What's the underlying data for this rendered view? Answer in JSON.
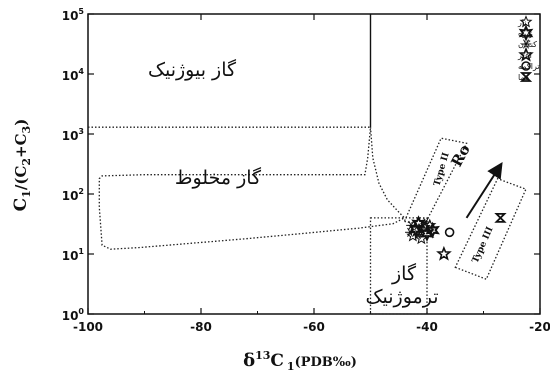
{
  "chart_data": {
    "type": "scatter",
    "x_axis": {
      "label_main": "δ",
      "label_sup": "13",
      "label_rest": "C",
      "label_sub": "1",
      "label_unit": "(PDB‰)",
      "range": [
        -100,
        -20
      ],
      "ticks": [
        "-100",
        "-80",
        "-60",
        "-40",
        "-20"
      ],
      "tick_values": [
        -100,
        -80,
        -60,
        -40,
        -20
      ]
    },
    "y_axis": {
      "scale": "log",
      "label_main": "C",
      "label_sub1": "1",
      "label_mid": "/(C",
      "label_sub2": "2",
      "label_plus": "+C",
      "label_sub3": "3",
      "label_close": ")",
      "range": [
        1,
        100000
      ],
      "ticks": [
        {
          "value": 1,
          "base": "10",
          "exp": "0"
        },
        {
          "value": 10,
          "base": "10",
          "exp": "1"
        },
        {
          "value": 100,
          "base": "10",
          "exp": "2"
        },
        {
          "value": 1000,
          "base": "10",
          "exp": "3"
        },
        {
          "value": 10000,
          "base": "10",
          "exp": "4"
        },
        {
          "value": 100000,
          "base": "10",
          "exp": "5"
        }
      ]
    },
    "regions": [
      {
        "name": "biogenic",
        "label": "گاز بیوژنیک",
        "x": -82,
        "y": 5000
      },
      {
        "name": "mixed",
        "label": "گاز مخلوط",
        "x": -80,
        "y": 200
      },
      {
        "name": "thermogenic",
        "label_line1": "گاز",
        "label_line2": "ترموژنیک",
        "x": -38,
        "y": 3
      }
    ],
    "kerogen_types": [
      {
        "name": "type-ii",
        "label": "Type II"
      },
      {
        "name": "type-iii",
        "label": "Type III"
      }
    ],
    "maturity_arrow": {
      "label": "Ro",
      "from": [
        -33,
        40
      ],
      "to": [
        -27,
        300
      ]
    },
    "series": [
      {
        "name": "نار",
        "marker": "star-outline",
        "points": [
          [
            -40.5,
            28
          ],
          [
            -41.8,
            24
          ],
          [
            -39.5,
            30
          ],
          [
            -42.5,
            20
          ],
          [
            -41,
            18
          ]
        ]
      },
      {
        "name": "زیره",
        "marker": "star-bold",
        "points": [
          [
            -41.5,
            32
          ],
          [
            -40,
            22
          ],
          [
            -42,
            26
          ],
          [
            -39,
            25
          ]
        ]
      },
      {
        "name": "کنگان",
        "marker": "asterisk",
        "points": [
          [
            -41,
            27
          ],
          [
            -42.8,
            30
          ],
          [
            -40.2,
            34
          ],
          [
            -43,
            23
          ],
          [
            -41.6,
            21
          ]
        ]
      },
      {
        "name": "اعتر",
        "marker": "star-large",
        "points": [
          [
            -37,
            10
          ]
        ]
      },
      {
        "name": "تراکمه",
        "marker": "circle",
        "points": [
          [
            -36,
            23
          ]
        ]
      },
      {
        "name": "هما",
        "marker": "hourglass",
        "points": [
          [
            -27,
            40
          ]
        ]
      }
    ]
  }
}
